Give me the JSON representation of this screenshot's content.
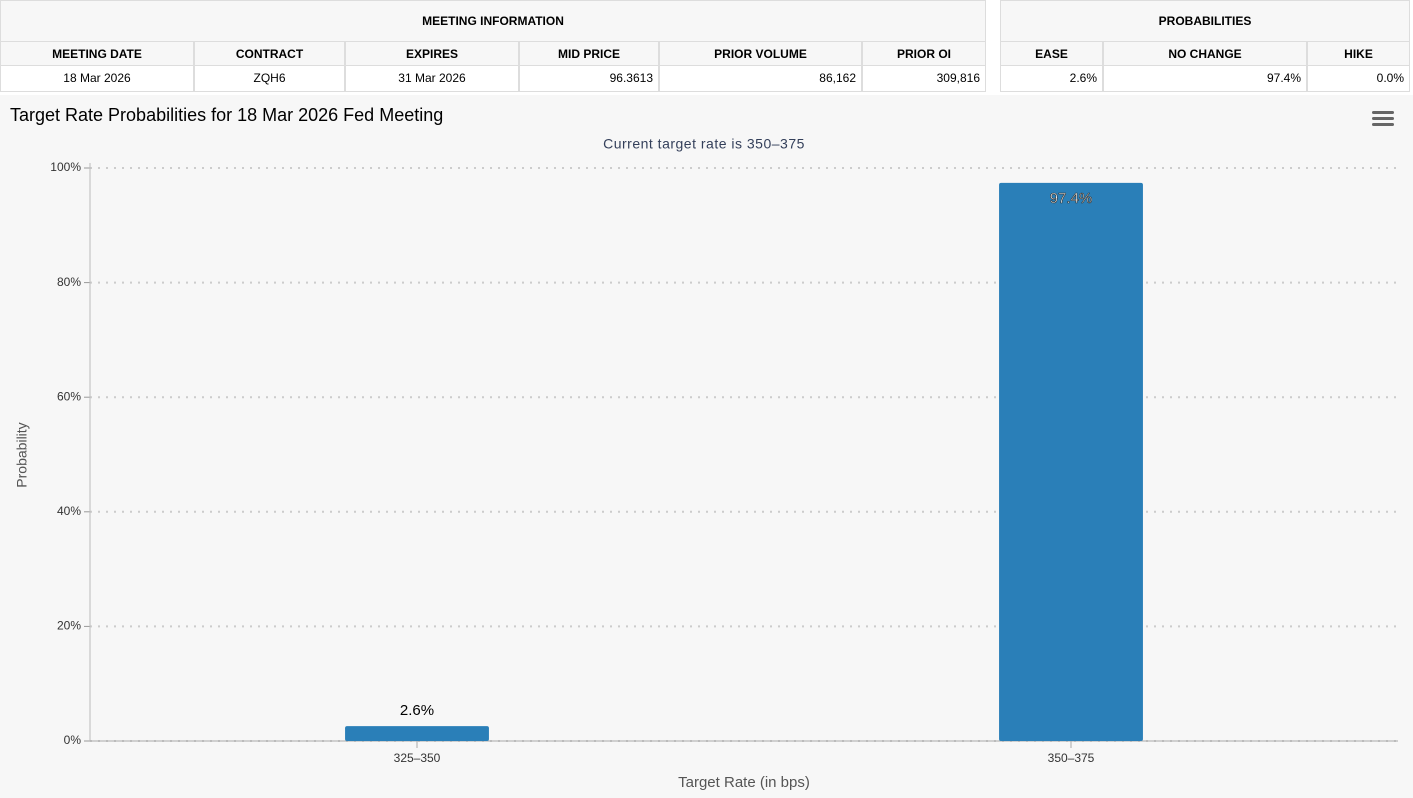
{
  "meeting_table": {
    "title": "MEETING INFORMATION",
    "headers": [
      "MEETING DATE",
      "CONTRACT",
      "EXPIRES",
      "MID PRICE",
      "PRIOR VOLUME",
      "PRIOR OI"
    ],
    "rows": [
      [
        "18 Mar 2026",
        "ZQH6",
        "31 Mar 2026",
        "96.3613",
        "86,162",
        "309,816"
      ]
    ]
  },
  "probabilities_table": {
    "title": "PROBABILITIES",
    "headers": [
      "EASE",
      "NO CHANGE",
      "HIKE"
    ],
    "rows": [
      [
        "2.6%",
        "97.4%",
        "0.0%"
      ]
    ]
  },
  "chart_data": {
    "type": "bar",
    "title": "Target Rate Probabilities for 18 Mar 2026 Fed Meeting",
    "subtitle": "Current target rate is 350–375",
    "x_label": "Target Rate (in bps)",
    "y_label": "Probability",
    "categories": [
      "325–350",
      "350–375"
    ],
    "values": [
      2.6,
      97.4
    ],
    "value_labels": [
      "2.6%",
      "97.4%"
    ],
    "color": "#2a7fb8",
    "ylim": [
      0,
      100
    ],
    "yticks": [
      {
        "value": 0,
        "label": "0%"
      },
      {
        "value": 20,
        "label": "20%"
      },
      {
        "value": 40,
        "label": "40%"
      },
      {
        "value": 60,
        "label": "60%"
      },
      {
        "value": 80,
        "label": "80%"
      },
      {
        "value": 100,
        "label": "100%"
      }
    ],
    "grid": true
  }
}
